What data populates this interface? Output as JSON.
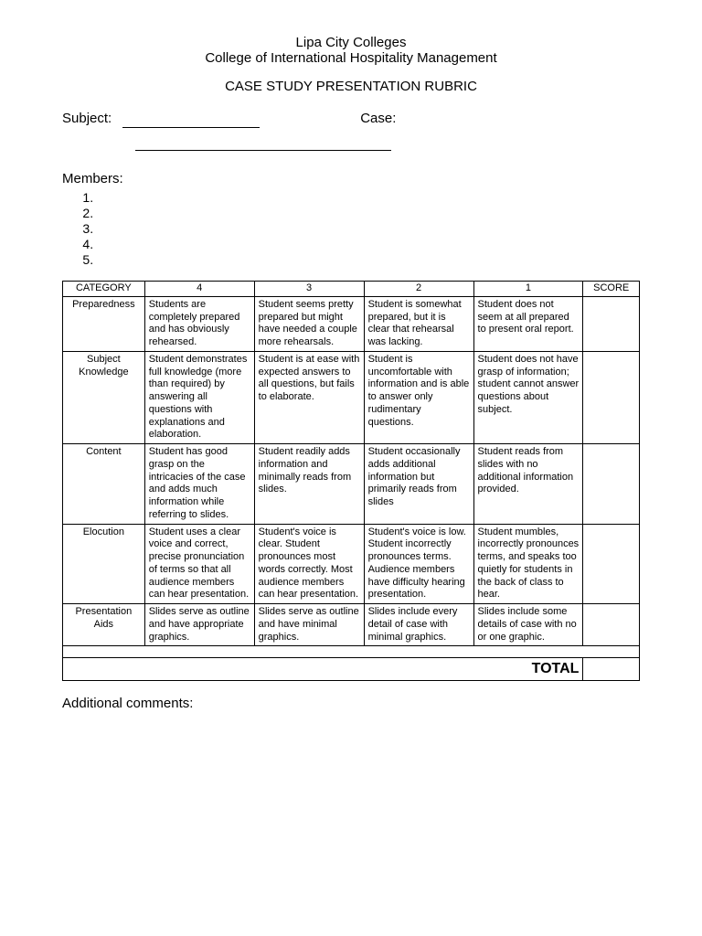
{
  "header": {
    "institution": "Lipa City Colleges",
    "college": "College of International Hospitality Management",
    "doc_title": "CASE STUDY PRESENTATION RUBRIC",
    "subject_label": "Subject:",
    "case_label": "Case:",
    "members_label": "Members:"
  },
  "members_count": 5,
  "table": {
    "columns": [
      "CATEGORY",
      "4",
      "3",
      "2",
      "1",
      "SCORE"
    ],
    "rows": [
      {
        "category": "Preparedness",
        "c4": "Students are completely prepared and has obviously rehearsed.",
        "c3": "Student seems pretty prepared but might have needed a couple more rehearsals.",
        "c2": "Student is somewhat prepared, but it is clear that rehearsal was lacking.",
        "c1": "Student does not seem at all prepared to present oral report."
      },
      {
        "category": "Subject Knowledge",
        "c4": "Student demonstrates full knowledge (more than required) by answering all questions with explanations and elaboration.",
        "c3": "Student is at ease with expected answers to all questions, but fails to elaborate.",
        "c2": "Student is uncomfortable with information and is able to answer only rudimentary questions.",
        "c1": "Student does not have grasp of information; student cannot answer questions about subject."
      },
      {
        "category": "Content",
        "c4": "Student has good grasp on the intricacies of the case and adds much information while referring to slides.",
        "c3": "Student readily adds information and minimally reads from slides.",
        "c2": "Student occasionally adds additional information but primarily reads from slides",
        "c1": "Student reads from slides with no additional information provided."
      },
      {
        "category": "Elocution",
        "c4": "Student uses a clear voice and correct, precise pronunciation of terms so that all audience members can hear presentation.",
        "c3": "Student's voice is clear. Student pronounces most words correctly. Most audience members can hear presentation.",
        "c2": "Student's voice is low. Student incorrectly pronounces terms. Audience members have difficulty hearing presentation.",
        "c1": "Student mumbles, incorrectly pronounces terms, and speaks too quietly for students in the back of class to hear."
      },
      {
        "category": "Presentation Aids",
        "c4": "Slides serve as outline and have appropriate graphics.",
        "c3": "Slides serve as outline and have minimal graphics.",
        "c2": "Slides include every detail of case with minimal graphics.",
        "c1": "Slides include some details of case with no or one graphic."
      }
    ],
    "total_label": "TOTAL"
  },
  "comments_label": "Additional comments:"
}
